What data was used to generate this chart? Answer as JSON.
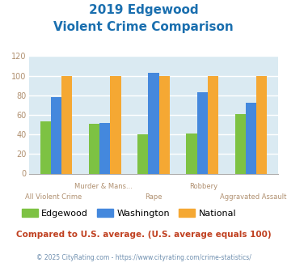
{
  "title_line1": "2019 Edgewood",
  "title_line2": "Violent Crime Comparison",
  "title_color": "#1a6faf",
  "categories": [
    "All Violent Crime",
    "Murder & Mans...",
    "Rape",
    "Robbery",
    "Aggravated Assault"
  ],
  "cat_line1": [
    "",
    "Murder & Mans...",
    "",
    "Robbery",
    ""
  ],
  "cat_line2": [
    "All Violent Crime",
    "",
    "Rape",
    "",
    "Aggravated Assault"
  ],
  "series": {
    "Edgewood": [
      53,
      51,
      40,
      41,
      61
    ],
    "Washington": [
      78,
      52,
      103,
      83,
      72
    ],
    "National": [
      100,
      100,
      100,
      100,
      100
    ]
  },
  "colors": {
    "Edgewood": "#7dc243",
    "Washington": "#4488dd",
    "National": "#f5a833"
  },
  "ylim": [
    0,
    120
  ],
  "yticks": [
    0,
    20,
    40,
    60,
    80,
    100,
    120
  ],
  "bg_color": "#daeaf2",
  "fig_bg": "#ffffff",
  "grid_color": "#ffffff",
  "note": "Compared to U.S. average. (U.S. average equals 100)",
  "note_color": "#c04020",
  "copyright": "© 2025 CityRating.com - https://www.cityrating.com/crime-statistics/",
  "copyright_color": "#7090b0",
  "bar_width": 0.22,
  "tick_color": "#b09070"
}
